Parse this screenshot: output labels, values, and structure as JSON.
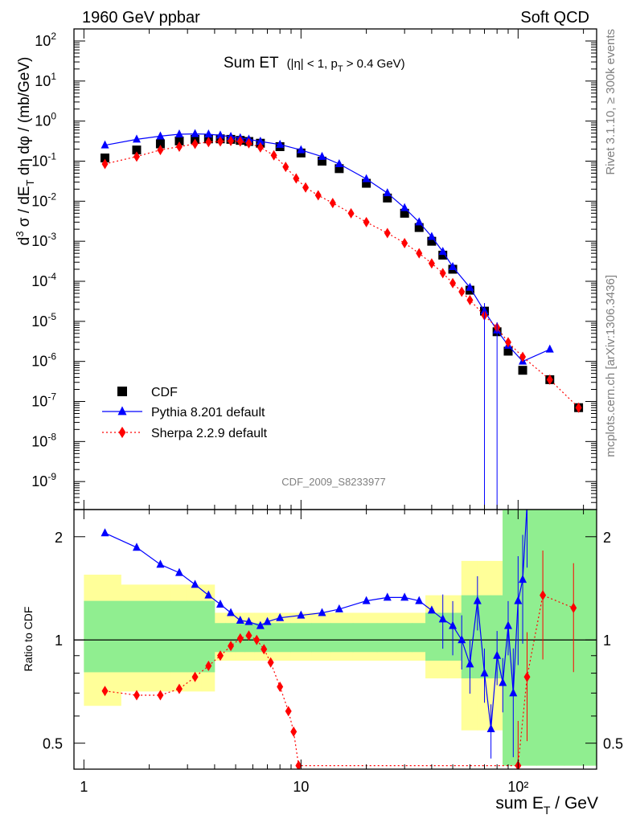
{
  "header": {
    "left": "1960 GeV ppbar",
    "right": "Soft QCD"
  },
  "side_labels": {
    "rivet": "Rivet 3.1.10, ≥ 300k events",
    "mcplots": "mcplots.cern.ch [arXiv:1306.3436]"
  },
  "watermark": "CDF_2009_S8233977",
  "chart_data": [
    {
      "type": "scatter",
      "title_main": "Sum ET",
      "title_cuts": "(|η| < 1, p",
      "title_cuts_sub": "T",
      "title_cuts_end": " > 0.4 GeV)",
      "ylabel": "d³σ / dE_T dη dφ / (mb/GeV)",
      "xlabel": "sum E_T / GeV",
      "xscale": "log",
      "yscale": "log",
      "xlim": [
        0.9,
        230
      ],
      "ylim": [
        2e-10,
        200
      ],
      "legend_position": "bottom-left",
      "series": [
        {
          "name": "CDF",
          "color": "#000000",
          "marker": "square",
          "points": [
            [
              1.25,
              0.12
            ],
            [
              1.75,
              0.19
            ],
            [
              2.25,
              0.27
            ],
            [
              2.75,
              0.32
            ],
            [
              3.25,
              0.35
            ],
            [
              3.75,
              0.36
            ],
            [
              4.25,
              0.36
            ],
            [
              4.75,
              0.35
            ],
            [
              5.25,
              0.33
            ],
            [
              5.75,
              0.31
            ],
            [
              6.5,
              0.28
            ],
            [
              8,
              0.23
            ],
            [
              10,
              0.16
            ],
            [
              12.5,
              0.1
            ],
            [
              15,
              0.065
            ],
            [
              20,
              0.028
            ],
            [
              25,
              0.012
            ],
            [
              30,
              0.005
            ],
            [
              35,
              0.0022
            ],
            [
              40,
              0.001
            ],
            [
              45,
              0.00045
            ],
            [
              50,
              0.0002
            ],
            [
              60,
              6e-05
            ],
            [
              70,
              1.8e-05
            ],
            [
              80,
              5.5e-06
            ],
            [
              90,
              1.8e-06
            ],
            [
              105,
              6e-07
            ],
            [
              140,
              3.5e-07
            ],
            [
              190,
              7e-08
            ]
          ]
        },
        {
          "name": "Pythia 8.201 default",
          "color": "#0000ff",
          "marker": "triangle",
          "points": [
            [
              1.25,
              0.25
            ],
            [
              1.75,
              0.35
            ],
            [
              2.25,
              0.42
            ],
            [
              2.75,
              0.47
            ],
            [
              3.25,
              0.48
            ],
            [
              3.75,
              0.47
            ],
            [
              4.25,
              0.44
            ],
            [
              4.75,
              0.41
            ],
            [
              5.25,
              0.38
            ],
            [
              5.75,
              0.35
            ],
            [
              6.5,
              0.31
            ],
            [
              8,
              0.26
            ],
            [
              10,
              0.19
            ],
            [
              12.5,
              0.13
            ],
            [
              15,
              0.085
            ],
            [
              20,
              0.036
            ],
            [
              25,
              0.016
            ],
            [
              30,
              0.0068
            ],
            [
              35,
              0.003
            ],
            [
              40,
              0.0013
            ],
            [
              45,
              0.00055
            ],
            [
              50,
              0.00023
            ],
            [
              60,
              7e-05
            ],
            [
              70,
              1.8e-05
            ],
            [
              80,
              6e-06
            ],
            [
              90,
              2.5e-06
            ],
            [
              105,
              1e-06
            ],
            [
              140,
              2e-06
            ]
          ]
        },
        {
          "name": "Sherpa 2.2.9 default",
          "color": "#ff0000",
          "marker": "diamond",
          "points": [
            [
              1.25,
              0.085
            ],
            [
              1.75,
              0.13
            ],
            [
              2.25,
              0.19
            ],
            [
              2.75,
              0.23
            ],
            [
              3.25,
              0.27
            ],
            [
              3.75,
              0.3
            ],
            [
              4.25,
              0.31
            ],
            [
              4.75,
              0.32
            ],
            [
              5.25,
              0.31
            ],
            [
              5.75,
              0.28
            ],
            [
              6.5,
              0.22
            ],
            [
              7.5,
              0.14
            ],
            [
              8.5,
              0.072
            ],
            [
              9.5,
              0.037
            ],
            [
              10.5,
              0.022
            ],
            [
              12,
              0.014
            ],
            [
              14,
              0.009
            ],
            [
              17,
              0.005
            ],
            [
              20,
              0.003
            ],
            [
              25,
              0.0016
            ],
            [
              30,
              0.0009
            ],
            [
              35,
              0.0005
            ],
            [
              40,
              0.00028
            ],
            [
              45,
              0.00016
            ],
            [
              50,
              9e-05
            ],
            [
              55,
              5.5e-05
            ],
            [
              60,
              3.4e-05
            ],
            [
              70,
              1.4e-05
            ],
            [
              80,
              7e-06
            ],
            [
              90,
              3e-06
            ],
            [
              105,
              1.3e-06
            ],
            [
              140,
              3.5e-07
            ],
            [
              190,
              7e-08
            ]
          ]
        }
      ]
    },
    {
      "type": "scatter",
      "ylabel": "Ratio to CDF",
      "xscale": "log",
      "yscale": "log",
      "xlim": [
        0.9,
        230
      ],
      "ylim": [
        0.42,
        2.4
      ],
      "yticks": [
        "0.5",
        "1",
        "2"
      ],
      "xticks": [
        "1",
        "10",
        "10²"
      ],
      "series": [
        {
          "name": "Pythia 8.201 default",
          "color": "#0000ff",
          "marker": "triangle",
          "points": [
            [
              1.25,
              2.05
            ],
            [
              1.75,
              1.86
            ],
            [
              2.25,
              1.66
            ],
            [
              2.75,
              1.57
            ],
            [
              3.25,
              1.45
            ],
            [
              3.75,
              1.35
            ],
            [
              4.25,
              1.27
            ],
            [
              4.75,
              1.2
            ],
            [
              5.25,
              1.14
            ],
            [
              5.75,
              1.13
            ],
            [
              6.5,
              1.1
            ],
            [
              7,
              1.13
            ],
            [
              8,
              1.16
            ],
            [
              10,
              1.18
            ],
            [
              12.5,
              1.2
            ],
            [
              15,
              1.23
            ],
            [
              20,
              1.3
            ],
            [
              25,
              1.33
            ],
            [
              30,
              1.33
            ],
            [
              35,
              1.3
            ],
            [
              40,
              1.22
            ],
            [
              45,
              1.15
            ],
            [
              50,
              1.1
            ],
            [
              55,
              1.0
            ],
            [
              60,
              0.85
            ],
            [
              65,
              1.3
            ],
            [
              70,
              0.8
            ],
            [
              75,
              0.55
            ],
            [
              80,
              0.9
            ],
            [
              85,
              0.75
            ],
            [
              90,
              1.1
            ],
            [
              95,
              0.7
            ],
            [
              100,
              1.3
            ],
            [
              105,
              1.5
            ],
            [
              110,
              2.5
            ]
          ]
        },
        {
          "name": "Sherpa 2.2.9 default",
          "color": "#ff0000",
          "marker": "diamond",
          "points": [
            [
              1.25,
              0.71
            ],
            [
              1.75,
              0.69
            ],
            [
              2.25,
              0.69
            ],
            [
              2.75,
              0.72
            ],
            [
              3.25,
              0.78
            ],
            [
              3.75,
              0.84
            ],
            [
              4.25,
              0.9
            ],
            [
              4.75,
              0.96
            ],
            [
              5.25,
              1.01
            ],
            [
              5.75,
              1.03
            ],
            [
              6.25,
              1.0
            ],
            [
              6.75,
              0.94
            ],
            [
              7.25,
              0.86
            ],
            [
              8,
              0.73
            ],
            [
              8.75,
              0.62
            ],
            [
              9.25,
              0.54
            ],
            [
              9.75,
              0.43
            ],
            [
              100,
              0.43
            ],
            [
              110,
              0.78
            ],
            [
              130,
              1.35
            ],
            [
              180,
              1.24
            ]
          ]
        }
      ]
    }
  ]
}
